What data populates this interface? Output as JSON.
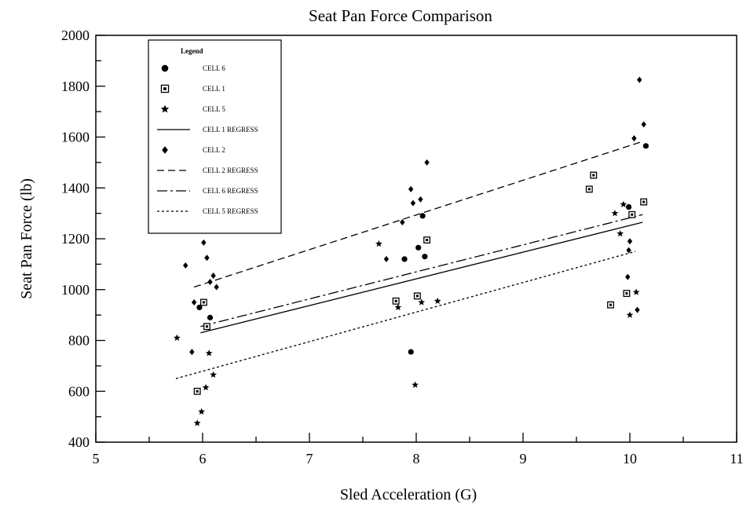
{
  "chart_data": {
    "type": "scatter",
    "title": "Seat Pan Force Comparison",
    "xlabel": "Sled Acceleration (G)",
    "ylabel": "Seat Pan Force (lb)",
    "xlim": [
      5,
      11
    ],
    "ylim": [
      400,
      2000
    ],
    "x_ticks": [
      "5",
      "6",
      "7",
      "8",
      "9",
      "10",
      "11"
    ],
    "y_ticks": [
      "400",
      "600",
      "800",
      "1000",
      "1200",
      "1400",
      "1600",
      "1800",
      "2000"
    ],
    "legend": {
      "title": "Legend",
      "placement": "top-left",
      "entries": [
        "CELL 6",
        "CELL 1",
        "CELL 5",
        "CELL 1 REGRESS",
        "CELL 2",
        "CELL 2 REGRESS",
        "CELL 6 REGRESS",
        "CELL 5 REGRESS"
      ]
    },
    "series": [
      {
        "name": "CELL 6",
        "marker": "circle",
        "color": "#000000",
        "x": [
          5.97,
          6.04,
          6.07,
          7.89,
          7.95,
          8.02,
          8.06,
          8.08,
          9.99,
          10.15
        ],
        "y": [
          930,
          855,
          890,
          1120,
          755,
          1165,
          1290,
          1130,
          1325,
          1565
        ]
      },
      {
        "name": "CELL 1",
        "marker": "square",
        "color": "#000000",
        "x": [
          5.95,
          6.01,
          6.04,
          7.81,
          8.01,
          8.1,
          9.62,
          9.66,
          9.82,
          9.97,
          10.02,
          10.13
        ],
        "y": [
          600,
          950,
          855,
          955,
          975,
          1195,
          1395,
          1450,
          940,
          985,
          1295,
          1345
        ]
      },
      {
        "name": "CELL 5",
        "marker": "star",
        "color": "#000000",
        "x": [
          5.76,
          5.95,
          5.99,
          6.03,
          6.06,
          6.1,
          7.65,
          7.83,
          7.99,
          8.05,
          8.2,
          9.86,
          9.91,
          9.94,
          10.0,
          10.06
        ],
        "y": [
          810,
          475,
          520,
          615,
          750,
          665,
          1180,
          930,
          625,
          950,
          955,
          1300,
          1220,
          1335,
          900,
          990
        ]
      },
      {
        "name": "CELL 2",
        "marker": "diamond",
        "color": "#000000",
        "x": [
          5.84,
          5.9,
          5.92,
          6.01,
          6.04,
          6.07,
          6.1,
          6.13,
          7.72,
          7.87,
          7.95,
          7.97,
          8.04,
          8.1,
          9.98,
          9.99,
          10.0,
          10.04,
          10.07,
          10.09,
          10.13
        ],
        "y": [
          1095,
          755,
          950,
          1185,
          1125,
          1030,
          1055,
          1010,
          1120,
          1265,
          1395,
          1340,
          1355,
          1500,
          1050,
          1155,
          1190,
          1595,
          920,
          1825,
          1650
        ]
      },
      {
        "name": "CELL 1 REGRESS",
        "line": "solid",
        "color": "#000000",
        "x": [
          5.98,
          10.12
        ],
        "y": [
          830,
          1265
        ]
      },
      {
        "name": "CELL 2 REGRESS",
        "line": "dashed",
        "color": "#000000",
        "x": [
          5.92,
          10.1
        ],
        "y": [
          1010,
          1580
        ]
      },
      {
        "name": "CELL 6 REGRESS",
        "line": "dashdot",
        "color": "#000000",
        "x": [
          5.98,
          10.12
        ],
        "y": [
          855,
          1295
        ]
      },
      {
        "name": "CELL 5 REGRESS",
        "line": "dotted",
        "color": "#000000",
        "x": [
          5.75,
          10.05
        ],
        "y": [
          650,
          1150
        ]
      }
    ]
  }
}
